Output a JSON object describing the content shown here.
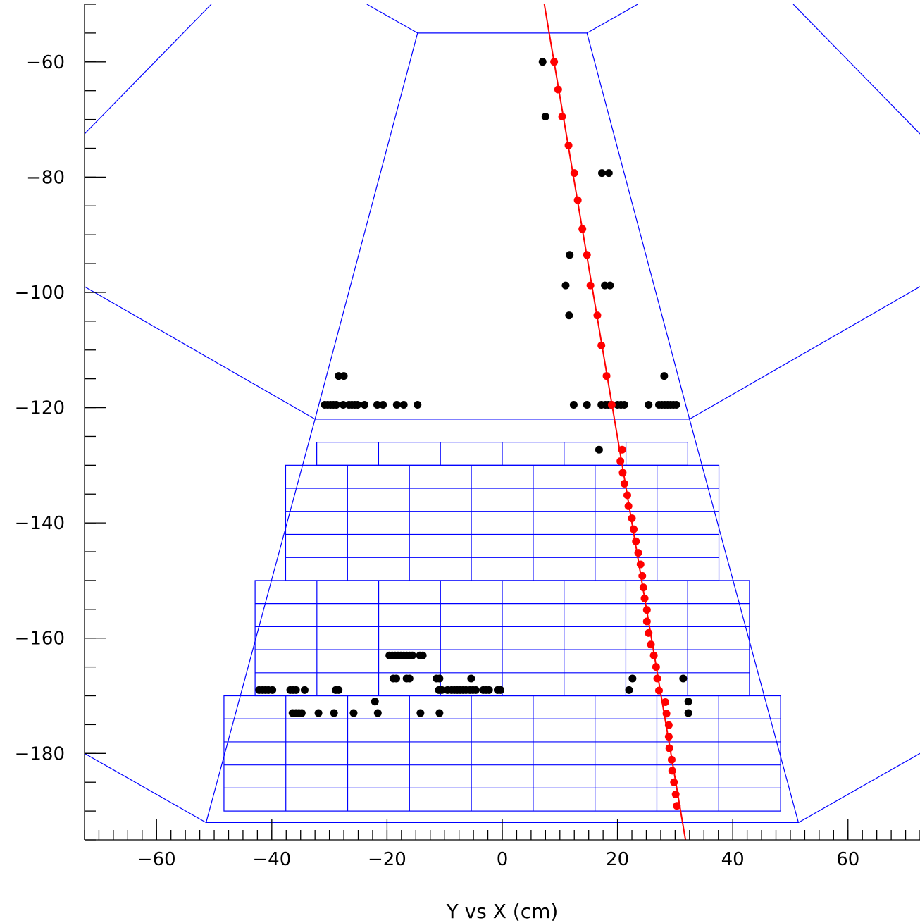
{
  "chart_data": {
    "type": "scatter",
    "title": "",
    "xlabel": "Y vs X (cm)",
    "ylabel": "",
    "xlim": [
      -72.5,
      72.5
    ],
    "ylim": [
      -195,
      -50
    ],
    "x_major_ticks": [
      -60,
      -40,
      -20,
      0,
      20,
      40,
      60
    ],
    "x_tick_labels": [
      "−60",
      "−40",
      "−20",
      "0",
      "20",
      "40",
      "60"
    ],
    "x_minor_step": 2.5,
    "y_major_ticks": [
      -60,
      -80,
      -100,
      -120,
      -140,
      -160,
      -180
    ],
    "y_tick_labels": [
      "−60",
      "−80",
      "−100",
      "−120",
      "−140",
      "−160",
      "−180"
    ],
    "y_minor_step": 5,
    "grid": false,
    "colors": {
      "detector": "#0000ff",
      "hits": "#000000",
      "track": "#ff0000"
    },
    "detector_outline": {
      "inner_trapezoid": [
        [
          -14.7,
          -55
        ],
        [
          14.7,
          -55
        ],
        [
          32.5,
          -122
        ],
        [
          -32.5,
          -122
        ]
      ],
      "outer_trapezoid": [
        [
          -32.5,
          -122
        ],
        [
          32.5,
          -122
        ],
        [
          51.4,
          -192
        ],
        [
          -51.4,
          -192
        ]
      ],
      "wedge_lines": [
        [
          [
            -72.5,
            -72.5
          ],
          [
            -50.5,
            -50
          ]
        ],
        [
          [
            -14.7,
            -55
          ],
          [
            -23.5,
            -50
          ]
        ],
        [
          [
            14.7,
            -55
          ],
          [
            23.5,
            -50
          ]
        ],
        [
          [
            72.5,
            -72.5
          ],
          [
            50.5,
            -50
          ]
        ],
        [
          [
            -72.5,
            -99
          ],
          [
            -32.5,
            -122
          ]
        ],
        [
          [
            72.5,
            -99
          ],
          [
            32.5,
            -122
          ]
        ],
        [
          [
            -72.5,
            -180
          ],
          [
            -51.4,
            -192
          ]
        ],
        [
          [
            72.5,
            -180
          ],
          [
            51.4,
            -192
          ]
        ]
      ]
    },
    "calorimeter_blocks": [
      {
        "x0": -32.2,
        "x1": 32.2,
        "y_top": -126,
        "y_bottom": -130,
        "rows": 1,
        "cols": 6
      },
      {
        "x0": -37.6,
        "x1": 37.6,
        "y_top": -130,
        "y_bottom": -150,
        "rows": 5,
        "cols": 7
      },
      {
        "x0": -42.9,
        "x1": 42.9,
        "y_top": -150,
        "y_bottom": -170,
        "rows": 5,
        "cols": 8
      },
      {
        "x0": -48.3,
        "x1": 48.3,
        "y_top": -170,
        "y_bottom": -190,
        "rows": 5,
        "cols": 9
      }
    ],
    "hits": [
      [
        7,
        -60
      ],
      [
        7.5,
        -69.5
      ],
      [
        17.3,
        -79.3
      ],
      [
        18.5,
        -79.3
      ],
      [
        11.7,
        -93.5
      ],
      [
        11,
        -98.8
      ],
      [
        17.8,
        -98.8
      ],
      [
        18.7,
        -98.8
      ],
      [
        11.6,
        -104
      ],
      [
        -28.4,
        -114.5
      ],
      [
        -27.5,
        -114.5
      ],
      [
        28.1,
        -114.5
      ],
      [
        -30.8,
        -119.5
      ],
      [
        -30.3,
        -119.5
      ],
      [
        -29.8,
        -119.5
      ],
      [
        -29.3,
        -119.5
      ],
      [
        -28.8,
        -119.5
      ],
      [
        -27.6,
        -119.5
      ],
      [
        -26.6,
        -119.5
      ],
      [
        -26.1,
        -119.5
      ],
      [
        -25.6,
        -119.5
      ],
      [
        -25.1,
        -119.5
      ],
      [
        -23.9,
        -119.5
      ],
      [
        -21.7,
        -119.5
      ],
      [
        -20.7,
        -119.5
      ],
      [
        -18.3,
        -119.5
      ],
      [
        -17.1,
        -119.5
      ],
      [
        -14.7,
        -119.5
      ],
      [
        12.4,
        -119.5
      ],
      [
        14.7,
        -119.5
      ],
      [
        17.2,
        -119.5
      ],
      [
        17.9,
        -119.5
      ],
      [
        18.4,
        -119.5
      ],
      [
        18.9,
        -119.5
      ],
      [
        20,
        -119.5
      ],
      [
        20.6,
        -119.5
      ],
      [
        21.2,
        -119.5
      ],
      [
        25.4,
        -119.5
      ],
      [
        27.2,
        -119.5
      ],
      [
        27.7,
        -119.5
      ],
      [
        28.2,
        -119.5
      ],
      [
        28.7,
        -119.5
      ],
      [
        29.2,
        -119.5
      ],
      [
        29.7,
        -119.5
      ],
      [
        30.2,
        -119.5
      ],
      [
        16.8,
        -127.3
      ],
      [
        -19.6,
        -163
      ],
      [
        -19.1,
        -163
      ],
      [
        -18.6,
        -163
      ],
      [
        -18.1,
        -163
      ],
      [
        -17.6,
        -163
      ],
      [
        -17.1,
        -163
      ],
      [
        -16.6,
        -163
      ],
      [
        -16.1,
        -163
      ],
      [
        -15.6,
        -163
      ],
      [
        -14.3,
        -163
      ],
      [
        -13.8,
        -163
      ],
      [
        -18.9,
        -167
      ],
      [
        -18.4,
        -167
      ],
      [
        -16.6,
        -167
      ],
      [
        -16.1,
        -167
      ],
      [
        -11.4,
        -167
      ],
      [
        -10.9,
        -167
      ],
      [
        -5.4,
        -167
      ],
      [
        22.6,
        -167
      ],
      [
        31.4,
        -167
      ],
      [
        -42.2,
        -169
      ],
      [
        -41.6,
        -169
      ],
      [
        -41.1,
        -169
      ],
      [
        -40.6,
        -169
      ],
      [
        -39.9,
        -169
      ],
      [
        -36.8,
        -169
      ],
      [
        -36.3,
        -169
      ],
      [
        -35.8,
        -169
      ],
      [
        -34.3,
        -169
      ],
      [
        -28.9,
        -169
      ],
      [
        -28.4,
        -169
      ],
      [
        -11,
        -169
      ],
      [
        -10.5,
        -169
      ],
      [
        -9.5,
        -169
      ],
      [
        -8.8,
        -169
      ],
      [
        -8.3,
        -169
      ],
      [
        -7.8,
        -169
      ],
      [
        -7.3,
        -169
      ],
      [
        -6.8,
        -169
      ],
      [
        -6.3,
        -169
      ],
      [
        -5.6,
        -169
      ],
      [
        -5.1,
        -169
      ],
      [
        -4.6,
        -169
      ],
      [
        -3.3,
        -169
      ],
      [
        -2.8,
        -169
      ],
      [
        -2.3,
        -169
      ],
      [
        -0.8,
        -169
      ],
      [
        -0.3,
        -169
      ],
      [
        22,
        -169
      ],
      [
        -22.1,
        -171
      ],
      [
        32.3,
        -171
      ],
      [
        -36.4,
        -173
      ],
      [
        -35.8,
        -173
      ],
      [
        -35.3,
        -173
      ],
      [
        -34.8,
        -173
      ],
      [
        -31.9,
        -173
      ],
      [
        -29.2,
        -173
      ],
      [
        -25.8,
        -173
      ],
      [
        -21.6,
        -173
      ],
      [
        -14.2,
        -173
      ],
      [
        -10.9,
        -173
      ],
      [
        32.3,
        -173
      ]
    ],
    "track_line": [
      [
        7.3,
        -50
      ],
      [
        31.8,
        -195
      ]
    ],
    "track_points": [
      [
        9,
        -60
      ],
      [
        9.7,
        -64.8
      ],
      [
        10.4,
        -69.5
      ],
      [
        11.5,
        -74.5
      ],
      [
        12.5,
        -79.3
      ],
      [
        13.1,
        -84
      ],
      [
        13.9,
        -89
      ],
      [
        14.7,
        -93.5
      ],
      [
        15.3,
        -98.8
      ],
      [
        16.5,
        -104
      ],
      [
        17.2,
        -109.2
      ],
      [
        18.1,
        -114.5
      ],
      [
        19,
        -119.5
      ],
      [
        20.8,
        -127.3
      ],
      [
        20.5,
        -129.3
      ],
      [
        20.9,
        -131.3
      ],
      [
        21.2,
        -133.2
      ],
      [
        21.7,
        -135.2
      ],
      [
        21.9,
        -137.1
      ],
      [
        22.5,
        -139.2
      ],
      [
        22.8,
        -141.1
      ],
      [
        23.2,
        -143.2
      ],
      [
        23.6,
        -145.2
      ],
      [
        24,
        -147.2
      ],
      [
        24.3,
        -149.2
      ],
      [
        24.5,
        -151.2
      ],
      [
        24.7,
        -153.1
      ],
      [
        25.1,
        -155.1
      ],
      [
        25.1,
        -157.1
      ],
      [
        25.4,
        -159.1
      ],
      [
        25.8,
        -161.1
      ],
      [
        26.3,
        -163
      ],
      [
        26.7,
        -165
      ],
      [
        26.9,
        -167
      ],
      [
        27.2,
        -169.1
      ],
      [
        28.3,
        -171.1
      ],
      [
        28.5,
        -173.1
      ],
      [
        28.9,
        -175.1
      ],
      [
        28.9,
        -177.1
      ],
      [
        29,
        -179.1
      ],
      [
        29.4,
        -181.1
      ],
      [
        29.5,
        -183
      ],
      [
        29.8,
        -185
      ],
      [
        30.1,
        -187.1
      ],
      [
        30.3,
        -189.1
      ]
    ]
  }
}
